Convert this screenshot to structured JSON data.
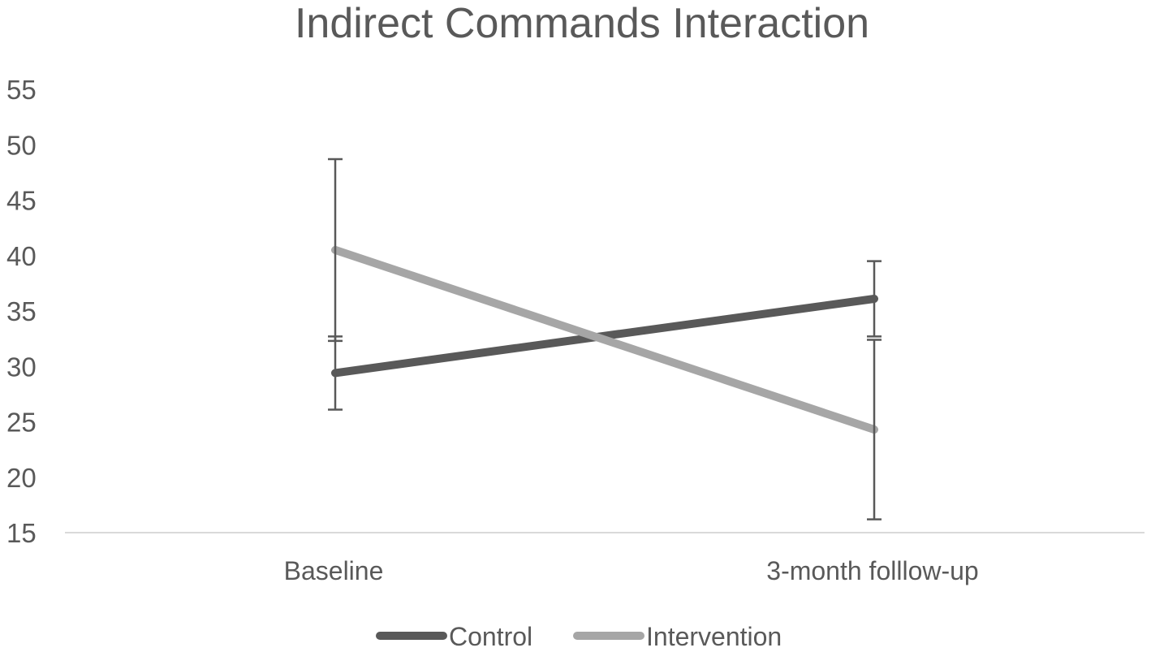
{
  "chart_data": {
    "type": "line",
    "title": "Indirect Commands Interaction",
    "xlabel": "",
    "ylabel": "",
    "categories": [
      "Baseline",
      "3-month folllow-up"
    ],
    "ylim": [
      15,
      55
    ],
    "yticks": [
      "15",
      "20",
      "25",
      "30",
      "35",
      "40",
      "45",
      "50",
      "55"
    ],
    "grid": false,
    "legend_position": "bottom",
    "series": [
      {
        "name": "Control",
        "color": "#595959",
        "values": [
          29.4,
          36.1
        ],
        "error": [
          {
            "low": 26.1,
            "high": 32.7
          },
          {
            "low": 32.7,
            "high": 39.5
          }
        ]
      },
      {
        "name": "Intervention",
        "color": "#a6a6a6",
        "values": [
          40.5,
          24.3
        ],
        "error": [
          {
            "low": 32.3,
            "high": 48.7
          },
          {
            "low": 16.2,
            "high": 32.4
          }
        ]
      }
    ]
  }
}
